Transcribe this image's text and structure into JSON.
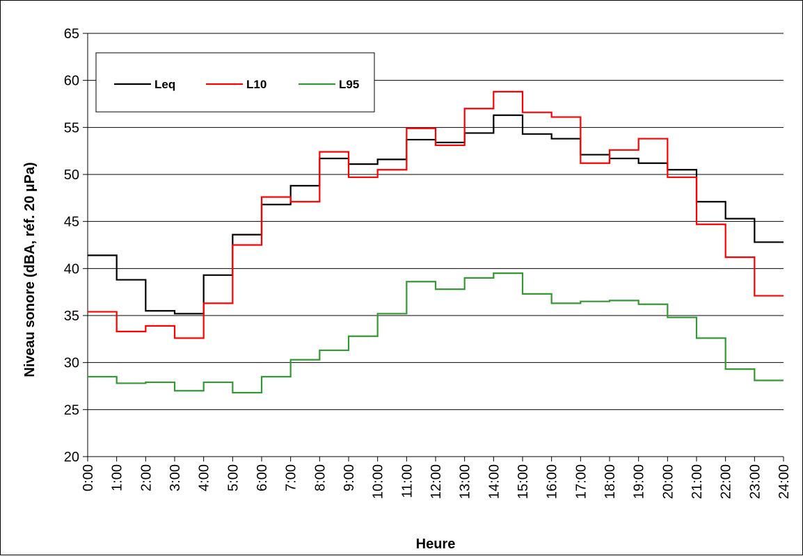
{
  "chart_data": {
    "type": "line",
    "step": true,
    "title": "",
    "xlabel": "Heure",
    "ylabel": "Niveau sonore (dBA, réf. 20 µPa)",
    "ylim": [
      20,
      65
    ],
    "yticks": [
      "20",
      "25",
      "30",
      "35",
      "40",
      "45",
      "50",
      "55",
      "60",
      "65"
    ],
    "x_tick_labels": [
      "0:00",
      "1:00",
      "2:00",
      "3:00",
      "4:00",
      "5:00",
      "6:00",
      "7:00",
      "8:00",
      "9:00",
      "10:00",
      "11:00",
      "12:00",
      "13:00",
      "14:00",
      "15:00",
      "16:00",
      "17:00",
      "18:00",
      "19:00",
      "20:00",
      "21:00",
      "22:00",
      "23:00",
      "24:00"
    ],
    "grid": "horizontal",
    "legend_position": "top-left",
    "series": [
      {
        "name": "Leq",
        "color": "#000000",
        "values": [
          41.4,
          38.8,
          35.5,
          35.2,
          39.3,
          43.6,
          46.8,
          48.8,
          51.7,
          51.1,
          51.6,
          53.7,
          53.4,
          54.4,
          56.3,
          54.3,
          53.8,
          52.1,
          51.7,
          51.2,
          50.5,
          47.1,
          45.3,
          42.8
        ]
      },
      {
        "name": "L10",
        "color": "#ff0000",
        "values": [
          35.4,
          33.3,
          33.9,
          32.6,
          36.3,
          42.5,
          47.6,
          47.1,
          52.4,
          49.7,
          50.5,
          54.9,
          53.1,
          57.0,
          58.8,
          56.6,
          56.1,
          51.2,
          52.6,
          53.8,
          49.7,
          44.7,
          41.2,
          37.1
        ]
      },
      {
        "name": "L95",
        "color": "#339933",
        "values": [
          28.5,
          27.8,
          27.9,
          27.0,
          27.9,
          26.8,
          28.5,
          30.3,
          31.3,
          32.8,
          35.2,
          38.6,
          37.8,
          39.0,
          39.5,
          37.3,
          36.3,
          36.5,
          36.6,
          36.2,
          34.8,
          32.6,
          29.3,
          28.1
        ]
      }
    ]
  }
}
